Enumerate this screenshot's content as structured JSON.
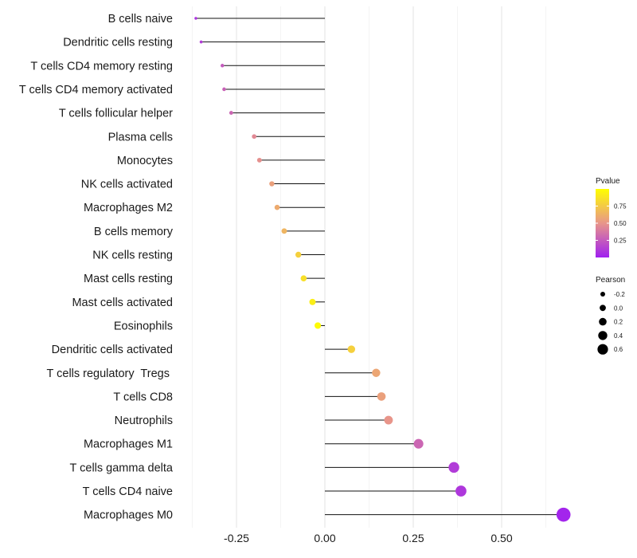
{
  "chart_data": {
    "type": "lollipop",
    "title": "",
    "xlabel": "",
    "ylabel": "",
    "xlim": [
      -0.375,
      0.7
    ],
    "x_ticks": [
      {
        "value": -0.25,
        "label": "-0.25"
      },
      {
        "value": 0.0,
        "label": "0.00"
      },
      {
        "value": 0.25,
        "label": "0.25"
      },
      {
        "value": 0.5,
        "label": "0.50"
      }
    ],
    "grid": true,
    "points": [
      {
        "category": "B cells naive",
        "value": -0.365,
        "pvalue": 0.08
      },
      {
        "category": "Dendritic cells resting",
        "value": -0.35,
        "pvalue": 0.12
      },
      {
        "category": "T cells CD4 memory resting",
        "value": -0.29,
        "pvalue": 0.25
      },
      {
        "category": "T cells CD4 memory activated",
        "value": -0.285,
        "pvalue": 0.28
      },
      {
        "category": "T cells follicular helper",
        "value": -0.265,
        "pvalue": 0.3
      },
      {
        "category": "Plasma cells",
        "value": -0.2,
        "pvalue": 0.45
      },
      {
        "category": "Monocytes",
        "value": -0.185,
        "pvalue": 0.48
      },
      {
        "category": "NK cells activated",
        "value": -0.15,
        "pvalue": 0.55
      },
      {
        "category": "Macrophages M2",
        "value": -0.135,
        "pvalue": 0.6
      },
      {
        "category": "B cells memory",
        "value": -0.115,
        "pvalue": 0.65
      },
      {
        "category": "NK cells resting",
        "value": -0.075,
        "pvalue": 0.78
      },
      {
        "category": "Mast cells resting",
        "value": -0.06,
        "pvalue": 0.85
      },
      {
        "category": "Mast cells activated",
        "value": -0.035,
        "pvalue": 0.92
      },
      {
        "category": "Eosinophils",
        "value": -0.02,
        "pvalue": 0.98
      },
      {
        "category": "Dendritic cells activated",
        "value": 0.075,
        "pvalue": 0.78
      },
      {
        "category": "T cells regulatory  Tregs ",
        "value": 0.145,
        "pvalue": 0.58
      },
      {
        "category": "T cells CD8",
        "value": 0.16,
        "pvalue": 0.55
      },
      {
        "category": "Neutrophils",
        "value": 0.18,
        "pvalue": 0.5
      },
      {
        "category": "Macrophages M1",
        "value": 0.265,
        "pvalue": 0.3
      },
      {
        "category": "T cells gamma delta",
        "value": 0.365,
        "pvalue": 0.12
      },
      {
        "category": "T cells CD4 naive",
        "value": 0.385,
        "pvalue": 0.1
      },
      {
        "category": "Macrophages M0",
        "value": 0.675,
        "pvalue": 0.02
      }
    ],
    "legend_pvalue": {
      "title": "Pvalue",
      "ticks": [
        {
          "value": 0.75,
          "label": "0.75"
        },
        {
          "value": 0.5,
          "label": "0.50"
        },
        {
          "value": 0.25,
          "label": "0.25"
        }
      ],
      "range": [
        0.0,
        1.0
      ],
      "color_low": "#a020f0",
      "color_mid": "#e8958a",
      "color_high": "#ffff00"
    },
    "legend_pearson": {
      "title": "Pearson",
      "entries": [
        {
          "value": -0.2,
          "label": "-0.2"
        },
        {
          "value": 0.0,
          "label": "0.0"
        },
        {
          "value": 0.2,
          "label": "0.2"
        },
        {
          "value": 0.4,
          "label": "0.4"
        },
        {
          "value": 0.6,
          "label": "0.6"
        }
      ]
    }
  }
}
